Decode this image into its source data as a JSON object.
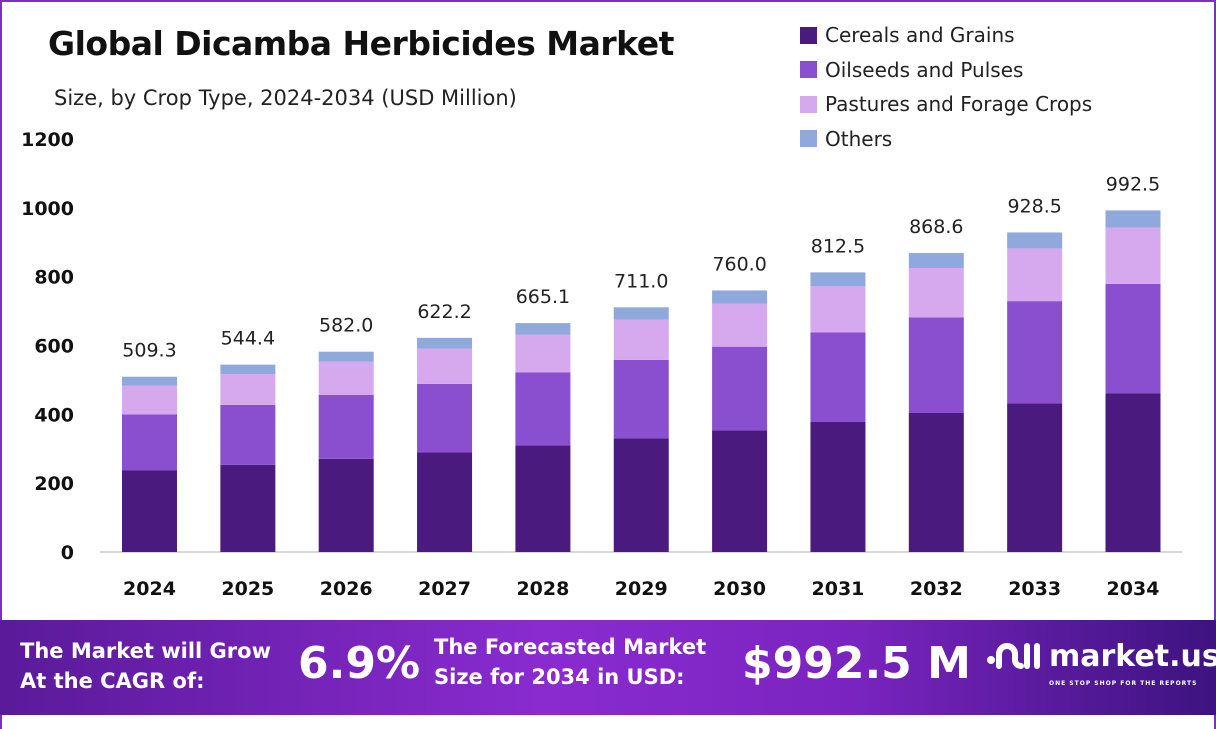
{
  "title": "Global Dicamba Herbicides Market",
  "subtitle": "Size, by  Crop Type, 2024-2034 (USD Million)",
  "chart_data": {
    "type": "bar",
    "stacked": true,
    "title": "Global Dicamba Herbicides Market",
    "subtitle": "Size, by  Crop Type, 2024-2034 (USD Million)",
    "categories": [
      "2024",
      "2025",
      "2026",
      "2027",
      "2028",
      "2029",
      "2030",
      "2031",
      "2032",
      "2033",
      "2034"
    ],
    "series": [
      {
        "name": "Cereals and Grains",
        "color": "#4a1a7e",
        "values": [
          236.8,
          253.1,
          270.6,
          289.3,
          309.3,
          330.6,
          353.4,
          377.8,
          403.9,
          431.8,
          461.5
        ]
      },
      {
        "name": "Oilseeds and Pulses",
        "color": "#8a4fcf",
        "values": [
          163.0,
          174.2,
          186.2,
          199.1,
          212.8,
          227.5,
          243.2,
          260.0,
          278.0,
          297.1,
          317.6
        ]
      },
      {
        "name": "Pastures and Forage Crops",
        "color": "#d6a8ee",
        "values": [
          84.0,
          89.8,
          96.0,
          102.7,
          109.7,
          117.3,
          125.4,
          134.1,
          143.3,
          153.2,
          163.8
        ]
      },
      {
        "name": "Others",
        "color": "#8fa9dc",
        "values": [
          25.5,
          27.3,
          29.2,
          31.1,
          33.3,
          35.6,
          38.0,
          40.6,
          43.4,
          46.4,
          49.6
        ]
      }
    ],
    "totals": [
      "509.3",
      "544.4",
      "582.0",
      "622.2",
      "665.1",
      "711.0",
      "760.0",
      "812.5",
      "868.6",
      "928.5",
      "992.5"
    ],
    "yticks": [
      "0",
      "200",
      "400",
      "600",
      "800",
      "1000",
      "1200"
    ],
    "ylim": [
      0,
      1200
    ],
    "grid": false,
    "legend": "top-right"
  },
  "banner": {
    "cagr_label_1": "The Market will Grow",
    "cagr_label_2": "At the CAGR of:",
    "cagr_value": "6.9%",
    "forecast_label_1": "The Forecasted Market",
    "forecast_label_2": "Size for 2034 in USD:",
    "forecast_value": "$992.5 M",
    "logo_text": "market.us",
    "logo_tagline": "ONE STOP SHOP FOR THE REPORTS"
  }
}
